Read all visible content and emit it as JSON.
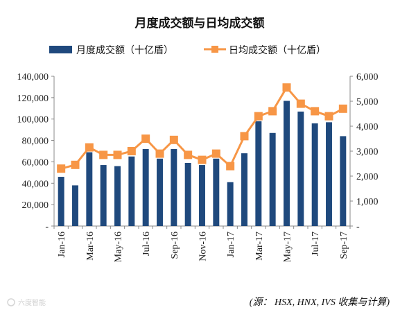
{
  "chart_data": {
    "type": "bar",
    "title": "月度成交额与日均成交额",
    "categories": [
      "Jan-16",
      "Feb-16",
      "Mar-16",
      "Apr-16",
      "May-16",
      "Jun-16",
      "Jul-16",
      "Aug-16",
      "Sep-16",
      "Oct-16",
      "Nov-16",
      "Dec-16",
      "Jan-17",
      "Feb-17",
      "Mar-17",
      "Apr-17",
      "May-17",
      "Jun-17",
      "Jul-17",
      "Aug-17",
      "Sep-17"
    ],
    "x_tick_labels": [
      "Jan-16",
      "",
      "Mar-16",
      "",
      "May-16",
      "",
      "Jul-16",
      "",
      "Sep-16",
      "",
      "Nov-16",
      "",
      "Jan-17",
      "",
      "Mar-17",
      "",
      "May-17",
      "",
      "Jul-17",
      "",
      "Sep-17"
    ],
    "series": [
      {
        "name": "月度成交额（十亿盾）",
        "type": "bar",
        "axis": "left",
        "color": "#1f497d",
        "values": [
          46000,
          38000,
          69000,
          57000,
          56000,
          65000,
          72000,
          63000,
          72000,
          59000,
          57000,
          63000,
          41000,
          68000,
          98000,
          87000,
          117000,
          107000,
          96000,
          97000,
          84000
        ]
      },
      {
        "name": "日均成交额（十亿盾）",
        "type": "line",
        "axis": "right",
        "color": "#f79646",
        "values": [
          2300,
          2450,
          3150,
          2850,
          2850,
          3000,
          3500,
          2900,
          3450,
          2850,
          2650,
          2900,
          2400,
          3600,
          4400,
          4600,
          5550,
          4900,
          4600,
          4400,
          4700
        ]
      }
    ],
    "y_left": {
      "min": 0,
      "max": 140000,
      "step": 20000,
      "tick_labels": [
        "-",
        "20,000",
        "40,000",
        "60,000",
        "80,000",
        "100,000",
        "120,000",
        "140,000"
      ]
    },
    "y_right": {
      "min": 0,
      "max": 6000,
      "step": 1000,
      "tick_labels": [
        "-",
        "1,000",
        "2,000",
        "3,000",
        "4,000",
        "5,000",
        "6,000"
      ]
    },
    "grid": false,
    "legend_position": "top",
    "source": "(源： HSX, HNX, IVS 收集与计算)",
    "watermark": "六度智能"
  }
}
